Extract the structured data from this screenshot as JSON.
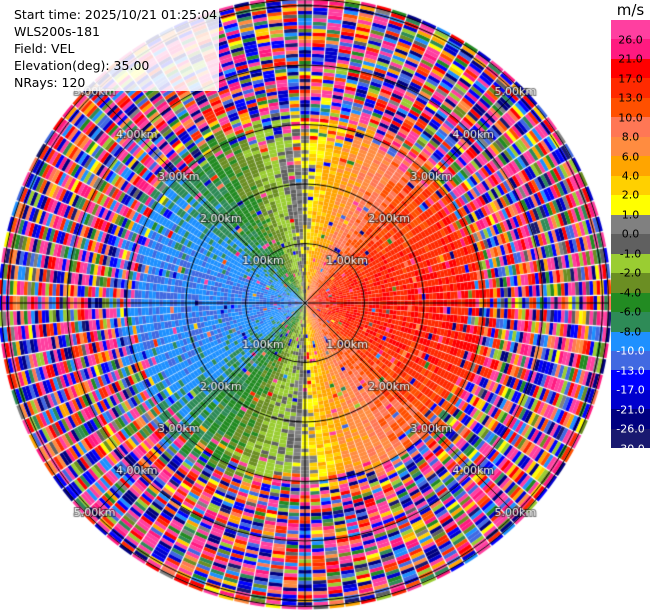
{
  "header": {
    "start_time": "Start time: 2025/10/21 01:25:04",
    "instrument": "WLS200s-181",
    "field": "Field: VEL",
    "elevation": "Elevation(deg): 35.00",
    "nrays": "NRays: 120"
  },
  "colorbar": {
    "unit": "m/s",
    "ticks": [
      "26.0",
      "21.0",
      "17.0",
      "13.0",
      "10.0",
      "8.0",
      "6.0",
      "4.0",
      "2.0",
      "1.0",
      "0.0",
      "-1.0",
      "-2.0",
      "-4.0",
      "-6.0",
      "-8.0",
      "-10.0",
      "-13.0",
      "-17.0",
      "-21.0",
      "-26.0",
      "-30.0"
    ],
    "colors": [
      "#ff3fa0",
      "#ff1a80",
      "#ff0000",
      "#ff2a00",
      "#ff5000",
      "#ff7755",
      "#ff8c40",
      "#ffa500",
      "#ffd000",
      "#ffff00",
      "#808080",
      "#606060",
      "#9acd32",
      "#6b8e23",
      "#228b22",
      "#2e8b57",
      "#1e90ff",
      "#4169e1",
      "#0000ff",
      "#0000cd",
      "#000080",
      "#191970"
    ]
  },
  "chart_data": {
    "type": "heatmap",
    "projection": "polar PPI",
    "field": "VEL",
    "unit": "m/s",
    "nrays": 120,
    "elevation_deg": 35.0,
    "range_rings_km": [
      1.0,
      2.0,
      3.0,
      4.0,
      5.0
    ],
    "ring_labels": [
      "1.00km",
      "2.00km",
      "3.00km",
      "4.00km",
      "5.00km"
    ],
    "max_range_km": 5.1,
    "gate_km": 0.06,
    "wind_pattern": {
      "description": "dipole radial velocity: positive (red/orange) to the east, negative (blue) to the west, zero line along north-south",
      "max_abs_velocity_ms": 13.0,
      "valid_range_km": [
        0.05,
        3.0
      ],
      "noise_beyond_km": 3.0
    },
    "color_scale": "m/s colorbar"
  }
}
